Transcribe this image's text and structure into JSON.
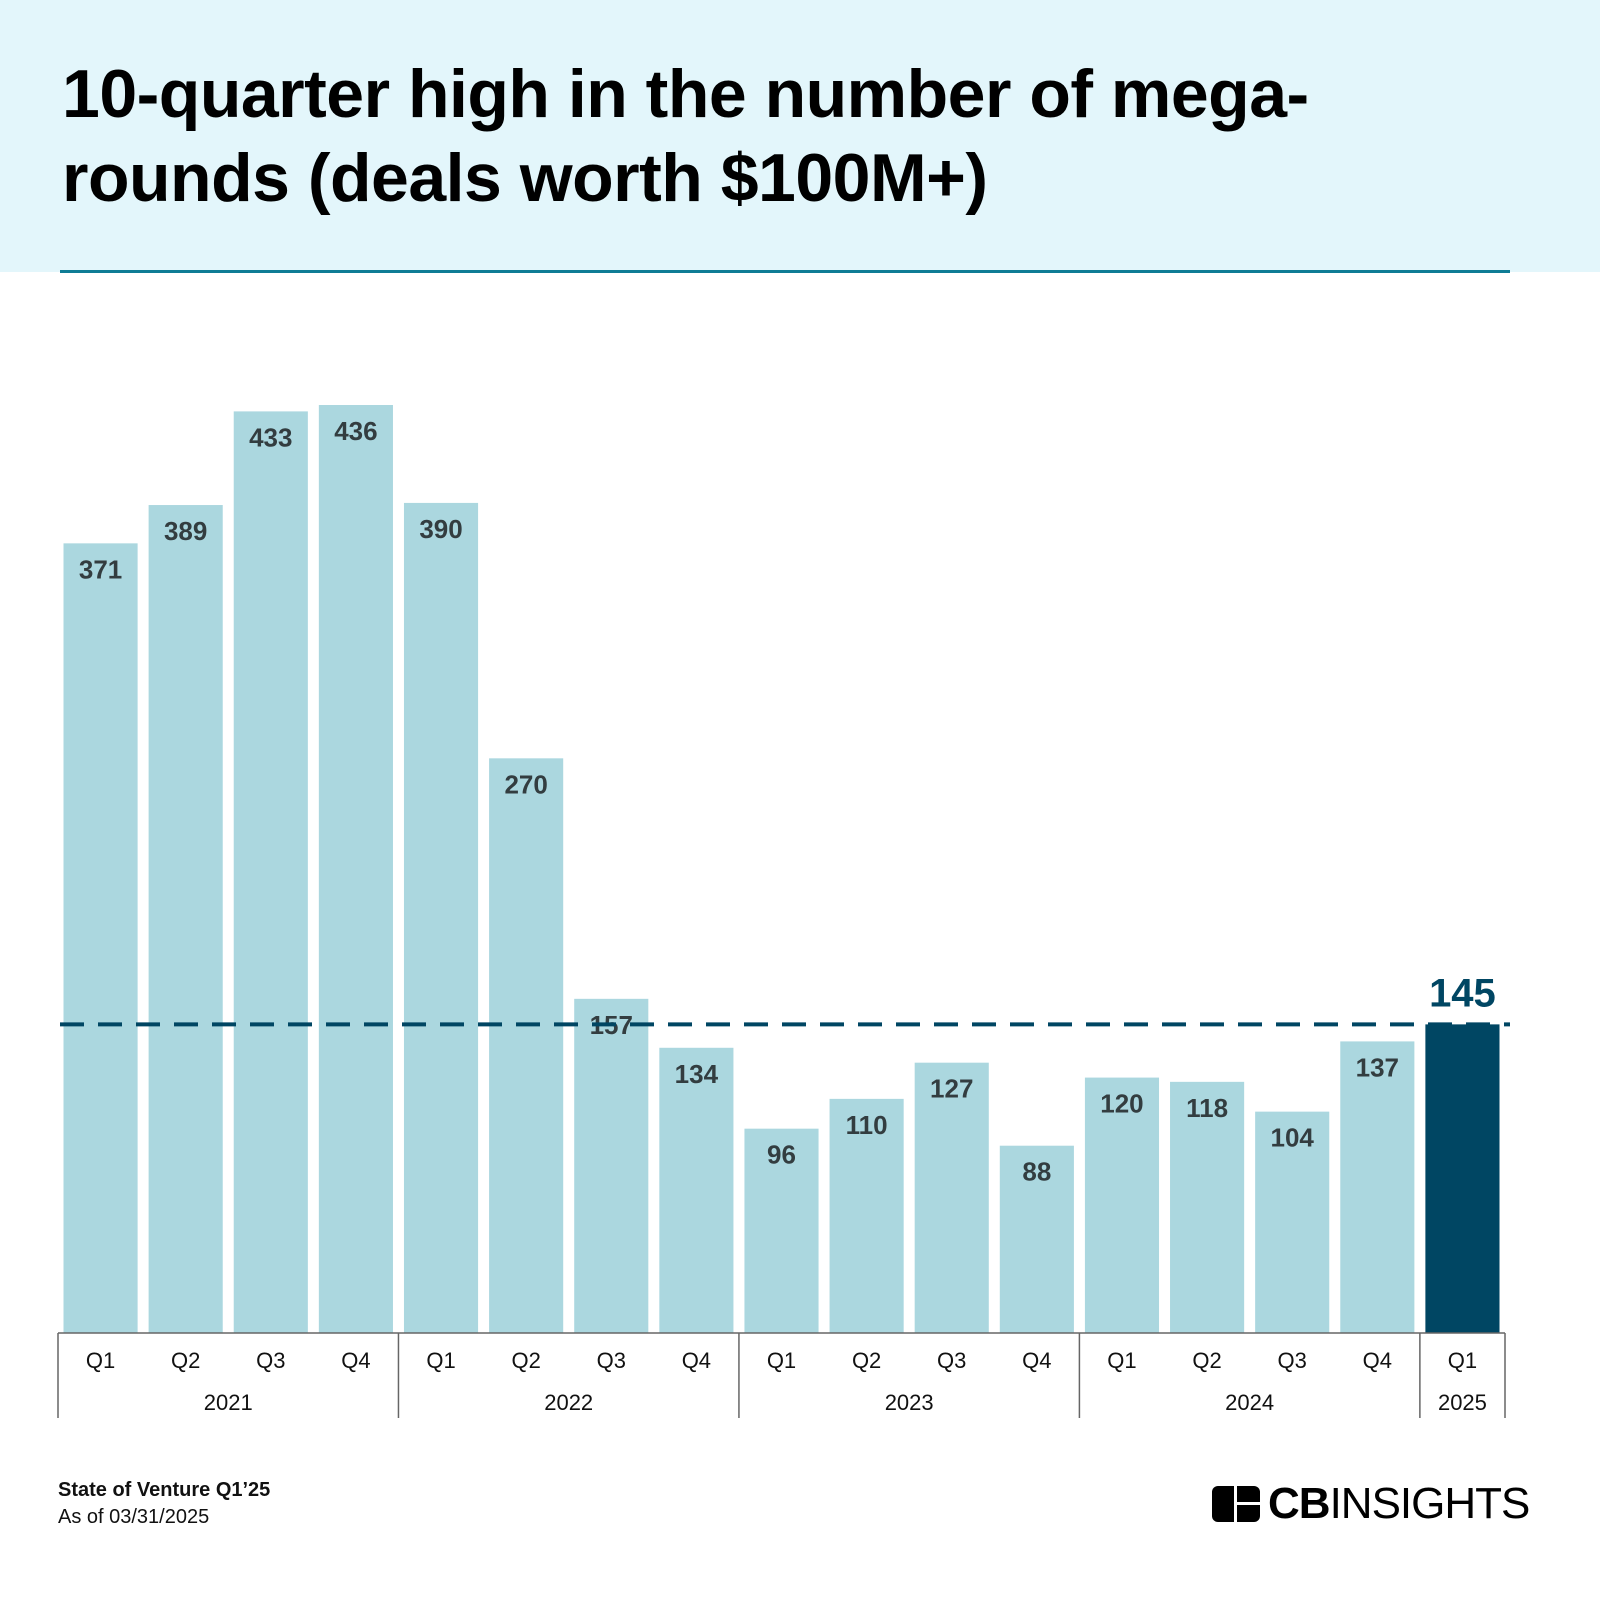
{
  "title": "10-quarter high in the number of mega-rounds (deals worth $100M+)",
  "footer": {
    "source": "State of Venture Q1’25",
    "date": "As of 03/31/2025"
  },
  "logo": {
    "bold": "CB",
    "light": "INSIGHTS"
  },
  "colors": {
    "bar": "#abd7df",
    "highlight": "#004663",
    "label": "#333d40",
    "reference_line": "#004663"
  },
  "chart_data": {
    "type": "bar",
    "title": "10-quarter high in the number of mega-rounds (deals worth $100M+)",
    "categories": [
      "Q1",
      "Q2",
      "Q3",
      "Q4",
      "Q1",
      "Q2",
      "Q3",
      "Q4",
      "Q1",
      "Q2",
      "Q3",
      "Q4",
      "Q1",
      "Q2",
      "Q3",
      "Q4",
      "Q1"
    ],
    "years": [
      {
        "label": "2021",
        "count": 4
      },
      {
        "label": "2022",
        "count": 4
      },
      {
        "label": "2023",
        "count": 4
      },
      {
        "label": "2024",
        "count": 4
      },
      {
        "label": "2025",
        "count": 1
      }
    ],
    "values": [
      371,
      389,
      433,
      436,
      390,
      270,
      157,
      134,
      96,
      110,
      127,
      88,
      120,
      118,
      104,
      137,
      145
    ],
    "highlight_index": 16,
    "reference_line": 145,
    "ylim": [
      0,
      436
    ],
    "xlabel": "",
    "ylabel": "",
    "grid": false
  }
}
